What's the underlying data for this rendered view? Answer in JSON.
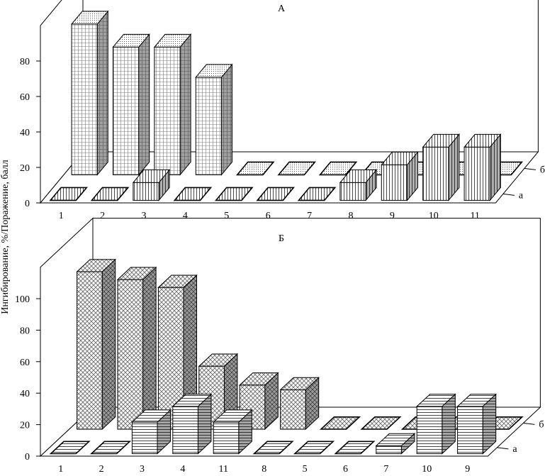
{
  "ylabel": "Ингибирование, %/Поражение, балл",
  "chart_data": [
    {
      "type": "bar",
      "title": "А",
      "categories": [
        "1",
        "2",
        "3",
        "4",
        "5",
        "6",
        "7",
        "8",
        "9",
        "10",
        "11"
      ],
      "series": [
        {
          "name": "а",
          "values": [
            0,
            0,
            10,
            0,
            0,
            0,
            0,
            10,
            20,
            30,
            30
          ]
        },
        {
          "name": "б",
          "values": [
            85,
            72,
            72,
            55,
            0,
            0,
            0,
            0,
            0,
            0,
            0
          ]
        }
      ],
      "yticks": [
        0,
        20,
        40,
        60,
        80
      ],
      "ylim": [
        0,
        100
      ],
      "colors": {
        "a_front": "#ffffff",
        "b_front": "#ffffff",
        "side": "#a8a8a8",
        "top": "#e6e6e6"
      }
    },
    {
      "type": "bar",
      "title": "Б",
      "categories": [
        "1",
        "2",
        "3",
        "4",
        "11",
        "8",
        "5",
        "6",
        "7",
        "10",
        "9"
      ],
      "series": [
        {
          "name": "а",
          "values": [
            0,
            0,
            20,
            30,
            20,
            0,
            0,
            0,
            5,
            30,
            30
          ]
        },
        {
          "name": "б",
          "values": [
            100,
            95,
            90,
            40,
            28,
            25,
            0,
            0,
            0,
            0,
            0
          ]
        }
      ],
      "yticks": [
        0,
        20,
        40,
        60,
        80,
        100
      ],
      "ylim": [
        0,
        120
      ],
      "colors": {
        "a_front": "#ffffff",
        "b_front": "#ededed",
        "side": "#9a9a9a",
        "top": "#d8d8d8"
      }
    }
  ]
}
